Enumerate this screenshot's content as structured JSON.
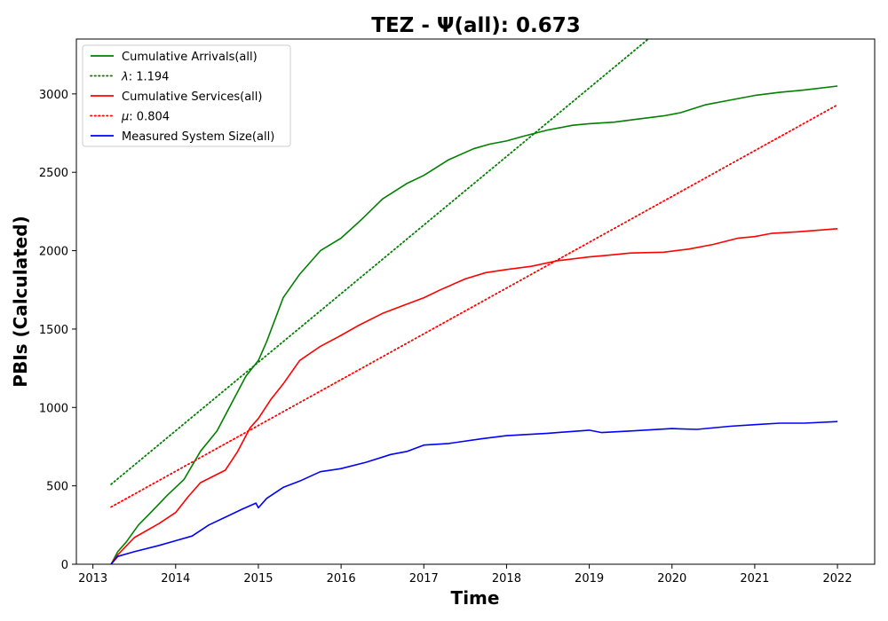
{
  "chart_data": {
    "type": "line",
    "title": "TEZ -  Ψ(all): 0.673",
    "xlabel": "Time",
    "ylabel": "PBIs (Calculated)",
    "xlim": [
      2012.8,
      2022.45
    ],
    "ylim": [
      0,
      3350
    ],
    "x_ticks": [
      2013,
      2014,
      2015,
      2016,
      2017,
      2018,
      2019,
      2020,
      2021,
      2022
    ],
    "y_ticks": [
      0,
      500,
      1000,
      1500,
      2000,
      2500,
      3000
    ],
    "grid": false,
    "legend_position": "top-left",
    "series": [
      {
        "name": "Cumulative Arrivals(all)",
        "label_prefix": "",
        "label_value": "",
        "color": "#008000",
        "style": "solid",
        "x": [
          2013.22,
          2013.3,
          2013.4,
          2013.55,
          2013.7,
          2013.9,
          2014.1,
          2014.3,
          2014.5,
          2014.7,
          2014.85,
          2015.0,
          2015.1,
          2015.3,
          2015.5,
          2015.75,
          2016.0,
          2016.25,
          2016.5,
          2016.8,
          2017.0,
          2017.3,
          2017.6,
          2017.8,
          2018.0,
          2018.2,
          2018.5,
          2018.8,
          2019.0,
          2019.3,
          2019.6,
          2019.9,
          2020.1,
          2020.4,
          2020.7,
          2021.0,
          2021.3,
          2021.6,
          2022.0
        ],
        "y": [
          0,
          80,
          140,
          250,
          330,
          440,
          540,
          720,
          850,
          1050,
          1200,
          1300,
          1420,
          1700,
          1850,
          2000,
          2080,
          2200,
          2330,
          2430,
          2480,
          2580,
          2650,
          2680,
          2700,
          2730,
          2770,
          2800,
          2810,
          2820,
          2840,
          2860,
          2880,
          2930,
          2960,
          2990,
          3010,
          3025,
          3050
        ]
      },
      {
        "name": "λ: 1.194",
        "label_prefix": "λ",
        "label_value": ": 1.194",
        "color": "#008000",
        "style": "dotted",
        "x": [
          2013.22,
          2021.2
        ],
        "y": [
          510,
          4000
        ]
      },
      {
        "name": "Cumulative Services(all)",
        "label_prefix": "",
        "label_value": "",
        "color": "#ff0000",
        "style": "solid",
        "x": [
          2013.22,
          2013.3,
          2013.5,
          2013.8,
          2014.0,
          2014.15,
          2014.3,
          2014.6,
          2014.75,
          2014.9,
          2015.0,
          2015.15,
          2015.3,
          2015.5,
          2015.75,
          2016.0,
          2016.2,
          2016.5,
          2016.75,
          2017.0,
          2017.2,
          2017.5,
          2017.75,
          2018.0,
          2018.3,
          2018.6,
          2019.0,
          2019.2,
          2019.5,
          2019.9,
          2020.2,
          2020.5,
          2020.8,
          2021.0,
          2021.2,
          2021.5,
          2022.0
        ],
        "y": [
          0,
          60,
          170,
          260,
          330,
          430,
          520,
          600,
          720,
          870,
          930,
          1050,
          1150,
          1300,
          1390,
          1460,
          1520,
          1600,
          1650,
          1700,
          1750,
          1820,
          1860,
          1880,
          1900,
          1935,
          1960,
          1970,
          1985,
          1990,
          2010,
          2040,
          2080,
          2090,
          2110,
          2120,
          2140
        ]
      },
      {
        "name": "μ: 0.804",
        "label_prefix": "μ",
        "label_value": ": 0.804",
        "color": "#ff0000",
        "style": "dotted",
        "x": [
          2013.22,
          2022.0
        ],
        "y": [
          365,
          2930
        ]
      },
      {
        "name": "Measured System Size(all)",
        "label_prefix": "",
        "label_value": "",
        "color": "#0000ff",
        "style": "solid",
        "x": [
          2013.22,
          2013.3,
          2013.5,
          2013.8,
          2014.0,
          2014.2,
          2014.4,
          2014.6,
          2014.8,
          2014.97,
          2015.0,
          2015.1,
          2015.3,
          2015.5,
          2015.75,
          2016.0,
          2016.3,
          2016.6,
          2016.8,
          2017.0,
          2017.3,
          2017.7,
          2018.0,
          2018.5,
          2019.0,
          2019.15,
          2019.5,
          2020.0,
          2020.3,
          2020.7,
          2021.0,
          2021.3,
          2021.6,
          2022.0
        ],
        "y": [
          0,
          50,
          80,
          120,
          150,
          180,
          250,
          300,
          350,
          390,
          360,
          420,
          490,
          530,
          590,
          610,
          650,
          700,
          720,
          760,
          770,
          800,
          820,
          835,
          855,
          840,
          850,
          865,
          860,
          880,
          890,
          900,
          900,
          910
        ]
      }
    ]
  }
}
